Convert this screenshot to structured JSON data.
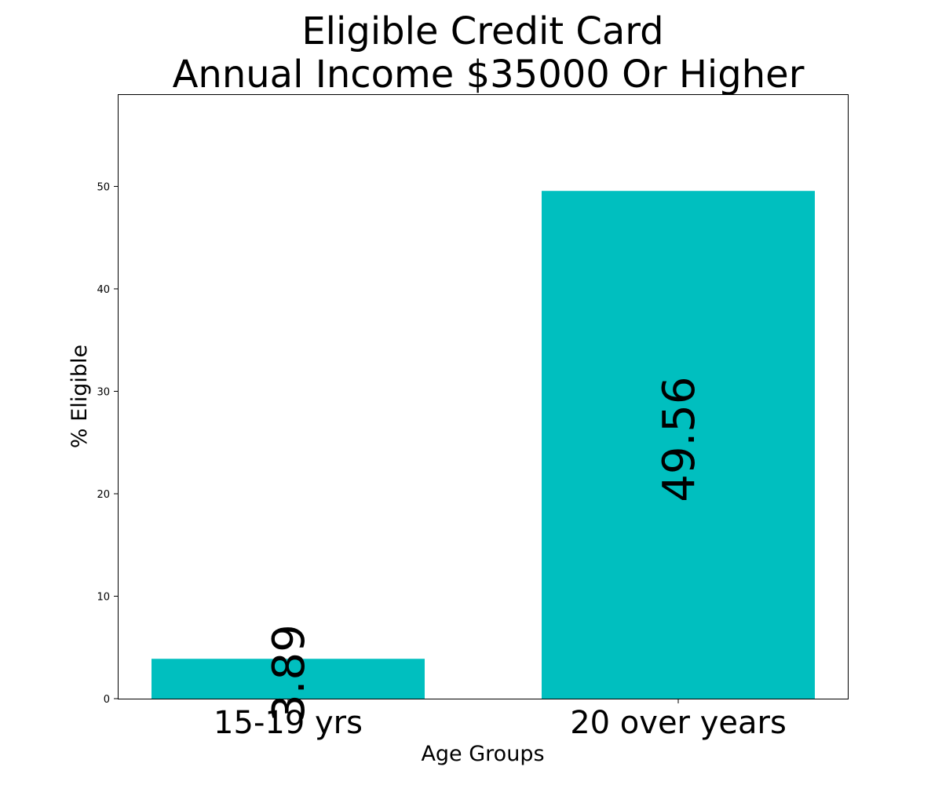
{
  "chart_data": {
    "type": "bar",
    "title": [
      "Eligible Credit Card",
      "Annual Income $35000 Or Higher"
    ],
    "xlabel": "Age Groups",
    "ylabel": "% Eligible",
    "categories": [
      "15-19 yrs",
      "20 over years"
    ],
    "values": [
      3.89,
      49.56
    ],
    "value_labels": [
      "3.89",
      "49.56"
    ],
    "ylim": [
      0,
      59
    ],
    "yticks": [
      0,
      10,
      20,
      30,
      40,
      50
    ],
    "bar_color": "#00bfbf",
    "grid": false,
    "legend": "none"
  }
}
